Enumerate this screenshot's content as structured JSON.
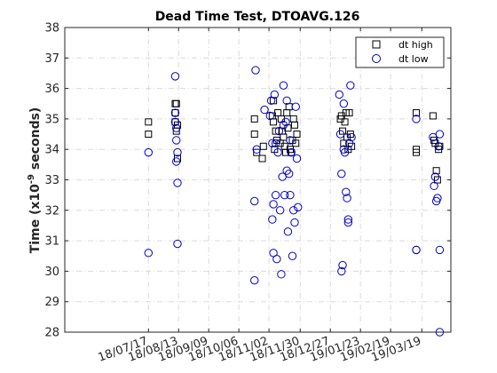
{
  "chart_data": {
    "type": "scatter",
    "title": "Dead Time Test, DTOAVG.126",
    "ylabel": "Time (x10^-9 seconds)",
    "ylabel_parts": {
      "pre": "Time  (x10",
      "sup": "-9",
      "post": "  seconds)"
    },
    "ylim": [
      28,
      38
    ],
    "yticks": [
      28,
      29,
      30,
      31,
      32,
      33,
      34,
      35,
      36,
      37,
      38
    ],
    "xlim": [
      "18/05/03",
      "19/04/14"
    ],
    "xticks": [
      "18/07/17",
      "18/08/13",
      "18/09/09",
      "18/10/06",
      "18/11/02",
      "18/11/30",
      "18/12/27",
      "19/01/23",
      "19/02/19",
      "19/03/19"
    ],
    "grid": true,
    "legend_position": "top-right",
    "series": [
      {
        "name": "dt high",
        "marker": "square",
        "color": "#000000",
        "points": [
          [
            "18/07/17",
            34.9
          ],
          [
            "18/07/17",
            34.5
          ],
          [
            "18/08/10",
            35.5
          ],
          [
            "18/08/10",
            35.2
          ],
          [
            "18/08/10",
            34.9
          ],
          [
            "18/08/11",
            34.6
          ],
          [
            "18/08/11",
            35.5
          ],
          [
            "18/08/12",
            34.8
          ],
          [
            "18/08/12",
            33.7
          ],
          [
            "18/10/20",
            35.0
          ],
          [
            "18/10/20",
            34.5
          ],
          [
            "18/10/22",
            33.9
          ],
          [
            "18/10/27",
            33.7
          ],
          [
            "18/10/28",
            34.1
          ],
          [
            "18/11/05",
            35.1
          ],
          [
            "18/11/06",
            35.6
          ],
          [
            "18/11/06",
            34.9
          ],
          [
            "18/11/07",
            34.0
          ],
          [
            "18/11/08",
            34.6
          ],
          [
            "18/11/09",
            34.3
          ],
          [
            "18/11/10",
            35.2
          ],
          [
            "18/11/12",
            34.2
          ],
          [
            "18/11/13",
            35.0
          ],
          [
            "18/11/14",
            34.6
          ],
          [
            "18/11/15",
            34.4
          ],
          [
            "18/11/16",
            34.1
          ],
          [
            "18/11/17",
            33.9
          ],
          [
            "18/11/18",
            35.2
          ],
          [
            "18/11/19",
            34.7
          ],
          [
            "18/11/20",
            35.4
          ],
          [
            "18/11/21",
            34.0
          ],
          [
            "18/11/22",
            33.9
          ],
          [
            "18/11/23",
            34.3
          ],
          [
            "18/11/24",
            35.0
          ],
          [
            "18/11/25",
            34.8
          ],
          [
            "18/11/26",
            34.2
          ],
          [
            "18/11/27",
            34.5
          ],
          [
            "19/01/05",
            35.0
          ],
          [
            "19/01/06",
            35.1
          ],
          [
            "19/01/07",
            34.6
          ],
          [
            "19/01/08",
            34.2
          ],
          [
            "19/01/09",
            34.9
          ],
          [
            "19/01/10",
            35.2
          ],
          [
            "19/01/11",
            34.4
          ],
          [
            "19/01/12",
            34.0
          ],
          [
            "19/01/13",
            35.2
          ],
          [
            "19/01/14",
            34.5
          ],
          [
            "19/01/15",
            34.1
          ],
          [
            "19/03/14",
            35.2
          ],
          [
            "19/03/14",
            34.0
          ],
          [
            "19/03/14",
            33.9
          ],
          [
            "19/03/29",
            35.1
          ],
          [
            "19/03/30",
            34.3
          ],
          [
            "19/03/31",
            34.2
          ],
          [
            "19/04/01",
            33.3
          ],
          [
            "19/04/02",
            33.0
          ],
          [
            "19/04/03",
            34.0
          ],
          [
            "19/04/04",
            34.1
          ]
        ]
      },
      {
        "name": "dt low",
        "marker": "circle",
        "color": "#0000cc",
        "points": [
          [
            "18/07/17",
            30.6
          ],
          [
            "18/07/17",
            33.9
          ],
          [
            "18/08/10",
            36.4
          ],
          [
            "18/08/10",
            35.2
          ],
          [
            "18/08/10",
            34.9
          ],
          [
            "18/08/11",
            34.3
          ],
          [
            "18/08/11",
            33.6
          ],
          [
            "18/08/12",
            32.9
          ],
          [
            "18/08/12",
            30.9
          ],
          [
            "18/08/12",
            33.9
          ],
          [
            "18/08/11",
            34.7
          ],
          [
            "18/10/20",
            32.3
          ],
          [
            "18/10/20",
            29.7
          ],
          [
            "18/10/21",
            36.6
          ],
          [
            "18/10/22",
            34.0
          ],
          [
            "18/10/29",
            35.3
          ],
          [
            "18/11/03",
            35.1
          ],
          [
            "18/11/04",
            35.6
          ],
          [
            "18/11/05",
            34.2
          ],
          [
            "18/11/05",
            31.7
          ],
          [
            "18/11/06",
            30.6
          ],
          [
            "18/11/06",
            32.2
          ],
          [
            "18/11/07",
            35.8
          ],
          [
            "18/11/08",
            34.2
          ],
          [
            "18/11/08",
            32.5
          ],
          [
            "18/11/09",
            30.4
          ],
          [
            "18/11/10",
            33.9
          ],
          [
            "18/11/11",
            34.6
          ],
          [
            "18/11/12",
            32.0
          ],
          [
            "18/11/13",
            29.9
          ],
          [
            "18/11/14",
            33.1
          ],
          [
            "18/11/15",
            36.1
          ],
          [
            "18/11/15",
            34.8
          ],
          [
            "18/11/16",
            32.5
          ],
          [
            "18/11/17",
            34.9
          ],
          [
            "18/11/18",
            35.6
          ],
          [
            "18/11/18",
            33.3
          ],
          [
            "18/11/19",
            31.3
          ],
          [
            "18/11/20",
            33.2
          ],
          [
            "18/11/21",
            34.3
          ],
          [
            "18/11/21",
            32.5
          ],
          [
            "18/11/22",
            33.9
          ],
          [
            "18/11/23",
            30.5
          ],
          [
            "18/11/24",
            32.0
          ],
          [
            "18/11/25",
            31.6
          ],
          [
            "18/11/26",
            35.4
          ],
          [
            "18/11/27",
            33.7
          ],
          [
            "18/11/28",
            32.1
          ],
          [
            "19/01/04",
            35.8
          ],
          [
            "19/01/05",
            34.5
          ],
          [
            "19/01/06",
            33.2
          ],
          [
            "19/01/06",
            30.0
          ],
          [
            "19/01/07",
            30.2
          ],
          [
            "19/01/08",
            35.5
          ],
          [
            "19/01/08",
            34.0
          ],
          [
            "19/01/09",
            33.9
          ],
          [
            "19/01/10",
            32.6
          ],
          [
            "19/01/11",
            32.4
          ],
          [
            "19/01/12",
            31.7
          ],
          [
            "19/01/12",
            31.6
          ],
          [
            "19/01/13",
            34.2
          ],
          [
            "19/01/14",
            36.1
          ],
          [
            "19/01/15",
            34.4
          ],
          [
            "19/03/14",
            35.0
          ],
          [
            "19/03/14",
            30.7
          ],
          [
            "19/03/14",
            30.7
          ],
          [
            "19/03/29",
            34.4
          ],
          [
            "19/03/30",
            32.8
          ],
          [
            "19/03/31",
            33.1
          ],
          [
            "19/04/01",
            32.3
          ],
          [
            "19/04/02",
            32.4
          ],
          [
            "19/04/03",
            34.1
          ],
          [
            "19/04/04",
            34.5
          ],
          [
            "19/04/04",
            30.7
          ],
          [
            "19/04/04",
            28.0
          ]
        ]
      }
    ]
  }
}
